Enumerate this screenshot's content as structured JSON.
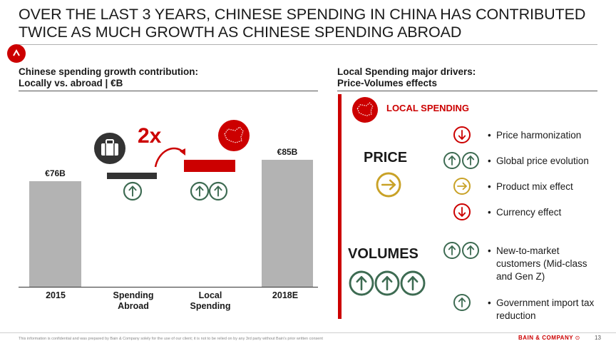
{
  "title": {
    "line1": "OVER THE LAST 3 YEARS, CHINESE SPENDING IN CHINA HAS CONTRIBUTED",
    "line2": "TWICE AS MUCH GROWTH AS CHINESE SPENDING ABROAD"
  },
  "left": {
    "heading_line1": "Chinese spending growth contribution:",
    "heading_line2": "Locally vs. abroad | €B",
    "multiplier": "2x"
  },
  "right": {
    "heading_line1": "Local Spending major drivers:",
    "heading_line2": "Price-Volumes effects",
    "local_label": "LOCAL SPENDING",
    "price_label": "PRICE",
    "volumes_label": "VOLUMES",
    "drivers": [
      {
        "text": "Price harmonization",
        "arrow": "down",
        "count": 1,
        "color": "#cc0000"
      },
      {
        "text": "Global price evolution",
        "arrow": "up",
        "count": 2,
        "color": "#3d6b52"
      },
      {
        "text": "Product mix effect",
        "arrow": "right",
        "count": 1,
        "color": "#c9a227"
      },
      {
        "text": "Currency effect",
        "arrow": "down",
        "count": 1,
        "color": "#cc0000"
      },
      {
        "text": "New-to-market customers (Mid-class and Gen Z)",
        "arrow": "up",
        "count": 2,
        "color": "#3d6b52"
      },
      {
        "text": "Government import tax reduction",
        "arrow": "up",
        "count": 1,
        "color": "#3d6b52"
      }
    ]
  },
  "chart_data": {
    "type": "bar",
    "categories": [
      "2015",
      "Spending Abroad",
      "Local Spending",
      "2018E"
    ],
    "values": [
      76,
      3,
      6,
      85
    ],
    "data_labels": [
      "€76B",
      "",
      "",
      "€85B"
    ],
    "kind": [
      "total",
      "delta",
      "delta",
      "total"
    ],
    "colors": {
      "total": "#b3b3b3",
      "abroad": "#333333",
      "local": "#cc0000",
      "up_arrow": "#3d6b52"
    }
  },
  "footer": {
    "disclaimer": "This information is confidential and was prepared by Bain & Company solely for the use of our client; it is not to be relied on by any 3rd party without Bain's prior written consent",
    "brand": "BAIN & COMPANY",
    "page": "13"
  }
}
